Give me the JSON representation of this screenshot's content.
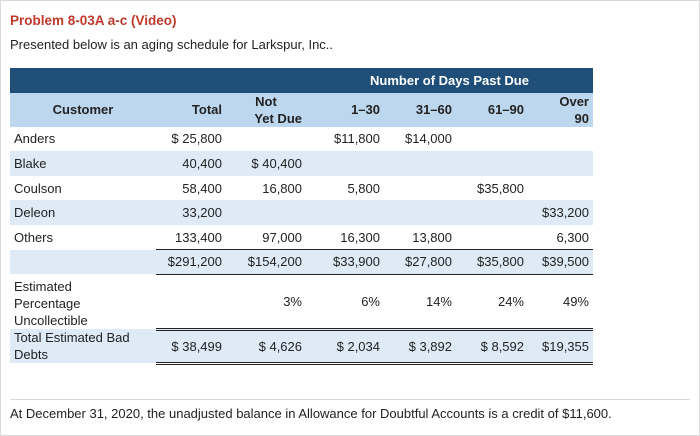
{
  "title": "Problem 8-03A a-c (Video)",
  "intro": "Presented below is an aging schedule for Larkspur, Inc..",
  "table": {
    "band_label": "Number of Days Past Due",
    "headers": {
      "customer": "Customer",
      "total": "Total",
      "not_yet_due_1": "Not",
      "not_yet_due_2": "Yet Due",
      "d1_30": "1–30",
      "d31_60": "31–60",
      "d61_90": "61–90",
      "over_90_1": "Over",
      "over_90_2": "90"
    },
    "rows": [
      {
        "customer": "Anders",
        "total": "$ 25,800",
        "not_yet_due": "",
        "d1_30": "$11,800",
        "d31_60": "$14,000",
        "d61_90": "",
        "over_90": ""
      },
      {
        "customer": "Blake",
        "total": "40,400",
        "not_yet_due": "$ 40,400",
        "d1_30": "",
        "d31_60": "",
        "d61_90": "",
        "over_90": ""
      },
      {
        "customer": "Coulson",
        "total": "58,400",
        "not_yet_due": "16,800",
        "d1_30": "5,800",
        "d31_60": "",
        "d61_90": "$35,800",
        "over_90": ""
      },
      {
        "customer": "Deleon",
        "total": "33,200",
        "not_yet_due": "",
        "d1_30": "",
        "d31_60": "",
        "d61_90": "",
        "over_90": "$33,200"
      },
      {
        "customer": "Others",
        "total": "133,400",
        "not_yet_due": "97,000",
        "d1_30": "16,300",
        "d31_60": "13,800",
        "d61_90": "",
        "over_90": "6,300"
      }
    ],
    "totals": {
      "total": "$291,200",
      "not_yet_due": "$154,200",
      "d1_30": "$33,900",
      "d31_60": "$27,800",
      "d61_90": "$35,800",
      "over_90": "$39,500"
    },
    "pct_label_1": "Estimated",
    "pct_label_2": "Percentage",
    "pct_label_3": "Uncollectible",
    "percentages": {
      "not_yet_due": "3%",
      "d1_30": "6%",
      "d31_60": "14%",
      "d61_90": "24%",
      "over_90": "49%"
    },
    "ted_label_1": "Total Estimated Bad",
    "ted_label_2": "Debts",
    "estimated_bad_debts": {
      "total": "$ 38,499",
      "not_yet_due": "$ 4,626",
      "d1_30": "$ 2,034",
      "d31_60": "$ 3,892",
      "d61_90": "$ 8,592",
      "over_90": "$19,355"
    }
  },
  "note": "At December 31, 2020, the unadjusted balance in Allowance for Doubtful Accounts is a credit of $11,600."
}
